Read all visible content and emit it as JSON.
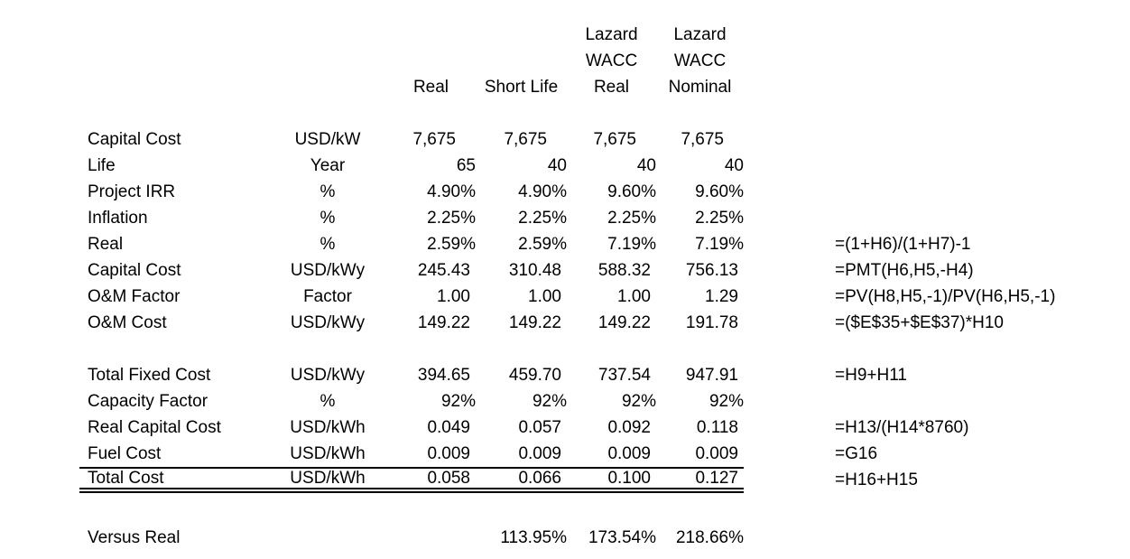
{
  "page": {
    "background_color": "#ffffff",
    "text_color": "#000000"
  },
  "table": {
    "header": {
      "columns": [
        {
          "id": "real",
          "lines": [
            "",
            "",
            "Real"
          ]
        },
        {
          "id": "short-life",
          "lines": [
            "",
            "",
            "Short Life"
          ]
        },
        {
          "id": "lazard-wacc-real",
          "lines": [
            "Lazard",
            "WACC",
            "Real"
          ]
        },
        {
          "id": "lazard-wacc-nominal",
          "lines": [
            "Lazard",
            "WACC",
            "Nominal"
          ]
        }
      ]
    },
    "rows": [
      {
        "label": "Capital Cost",
        "unit": "USD/kW",
        "format": "thousands",
        "values": [
          "7,675",
          "7,675",
          "7,675",
          "7,675"
        ],
        "formula": ""
      },
      {
        "label": "Life",
        "unit": "Year",
        "format": "integer",
        "values": [
          "65",
          "40",
          "40",
          "40"
        ],
        "formula": ""
      },
      {
        "label": "Project IRR",
        "unit": "%",
        "format": "percent",
        "values": [
          "4.90%",
          "4.90%",
          "9.60%",
          "9.60%"
        ],
        "formula": ""
      },
      {
        "label": "Inflation",
        "unit": "%",
        "format": "percent",
        "values": [
          "2.25%",
          "2.25%",
          "2.25%",
          "2.25%"
        ],
        "formula": ""
      },
      {
        "label": "Real",
        "unit": "%",
        "format": "percent",
        "values": [
          "2.59%",
          "2.59%",
          "7.19%",
          "7.19%"
        ],
        "formula": "=(1+H6)/(1+H7)-1"
      },
      {
        "label": "Capital Cost",
        "unit": "USD/kWy",
        "format": "decimal",
        "values": [
          "245.43",
          "310.48",
          "588.32",
          "756.13"
        ],
        "formula": "=PMT(H6,H5,-H4)"
      },
      {
        "label": "O&M Factor",
        "unit": "Factor",
        "format": "decimal",
        "values": [
          "1.00",
          "1.00",
          "1.00",
          "1.29"
        ],
        "formula": "=PV(H8,H5,-1)/PV(H6,H5,-1)"
      },
      {
        "label": "O&M Cost",
        "unit": "USD/kWy",
        "format": "decimal",
        "values": [
          "149.22",
          "149.22",
          "149.22",
          "191.78"
        ],
        "formula": "=($E$35+$E$37)*H10"
      },
      {
        "spacer": true
      },
      {
        "label": "Total Fixed Cost",
        "unit": "USD/kWy",
        "format": "decimal",
        "values": [
          "394.65",
          "459.70",
          "737.54",
          "947.91"
        ],
        "formula": "=H9+H11"
      },
      {
        "label": "Capacity Factor",
        "unit": "%",
        "format": "percent",
        "values": [
          "92%",
          "92%",
          "92%",
          "92%"
        ],
        "formula": ""
      },
      {
        "label": "Real Capital Cost",
        "unit": "USD/kWh",
        "format": "decimal",
        "values": [
          "0.049",
          "0.057",
          "0.092",
          "0.118"
        ],
        "formula": "=H13/(H14*8760)"
      },
      {
        "label": "Fuel Cost",
        "unit": "USD/kWh",
        "format": "decimal",
        "values": [
          "0.009",
          "0.009",
          "0.009",
          "0.009"
        ],
        "formula": "=G16"
      },
      {
        "label": "Total Cost",
        "unit": "USD/kWh",
        "format": "decimal",
        "values": [
          "0.058",
          "0.066",
          "0.100",
          "0.127"
        ],
        "formula": "=H16+H15",
        "emphasis": "total"
      },
      {
        "spacer": true,
        "height": 35
      },
      {
        "label": "Versus Real",
        "unit": "",
        "format": "percent",
        "values": [
          "",
          "113.95%",
          "173.54%",
          "218.66%"
        ],
        "formula": ""
      }
    ]
  }
}
